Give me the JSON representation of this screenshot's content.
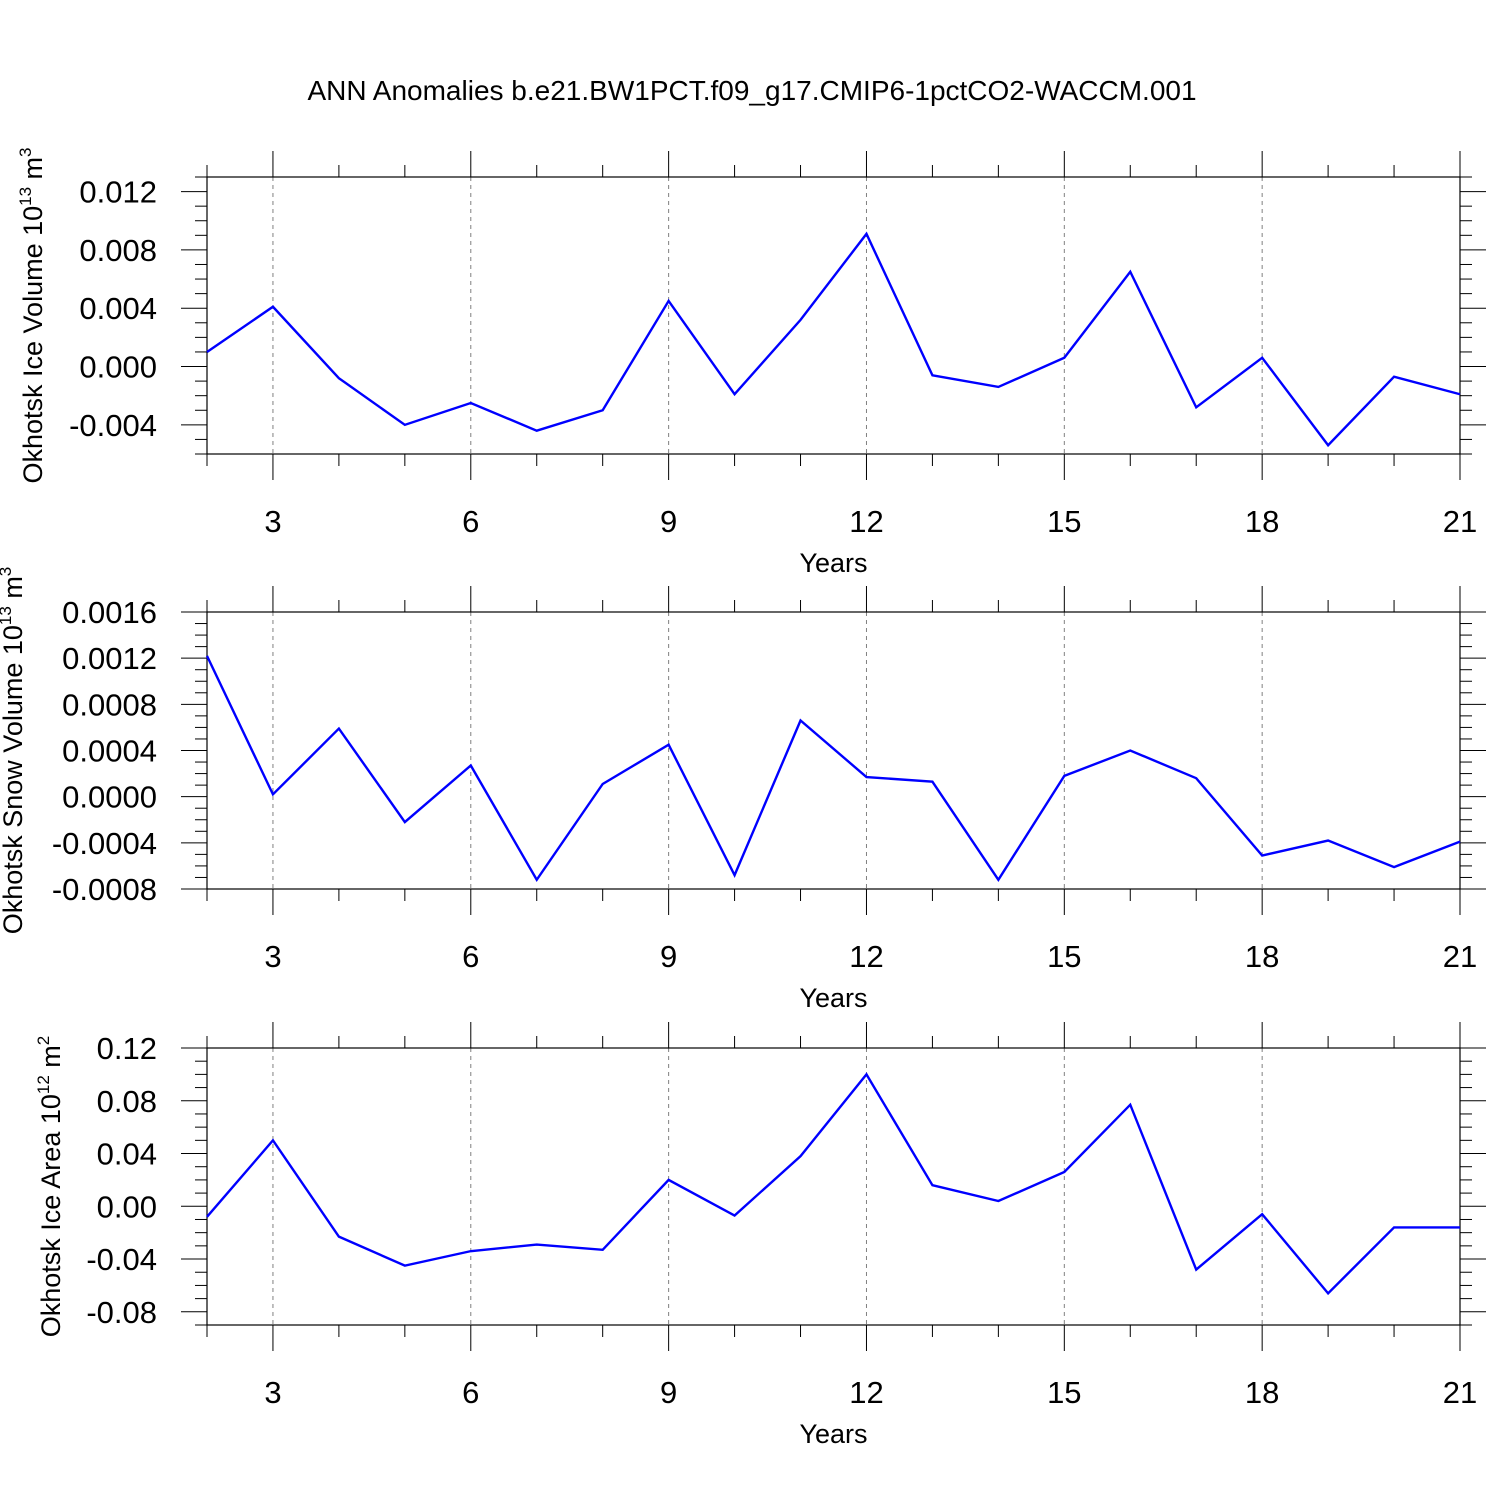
{
  "title": "ANN Anomalies b.e21.BW1PCT.f09_g17.CMIP6-1pctCO2-WACCM.001",
  "colors": {
    "series": "#0000ff",
    "axis": "#000000",
    "grid": "#808080"
  },
  "chart_data": [
    {
      "type": "line",
      "ylabel": "Okhotsk Ice Volume 10",
      "ylabel_exp": "13",
      "ylabel_unit": " m",
      "ylabel_unit_exp": "3",
      "xlabel": "Years",
      "xlim": [
        2,
        21
      ],
      "ylim": [
        -0.006,
        0.013
      ],
      "xticks": [
        3,
        6,
        9,
        12,
        15,
        18,
        21
      ],
      "xtick_labels": [
        "3",
        "6",
        "9",
        "12",
        "15",
        "18",
        "21"
      ],
      "yticks": [
        -0.004,
        0.0,
        0.004,
        0.008,
        0.012
      ],
      "ytick_labels": [
        "-0.004",
        "0.000",
        "0.004",
        "0.008",
        "0.012"
      ],
      "ymajor_step": 0.004,
      "yminor_step": 0.001,
      "grid": "vertical dashed at major x ticks",
      "x": [
        2,
        3,
        4,
        5,
        6,
        7,
        8,
        9,
        10,
        11,
        12,
        13,
        14,
        15,
        16,
        17,
        18,
        19,
        20,
        21
      ],
      "series": [
        {
          "values": [
            0.001,
            0.0041,
            -0.0008,
            -0.004,
            -0.0025,
            -0.0044,
            -0.003,
            0.0045,
            -0.0019,
            0.0032,
            0.0091,
            -0.0006,
            -0.0014,
            0.0006,
            0.0065,
            -0.0028,
            0.0006,
            -0.0054,
            -0.0007,
            -0.0019
          ]
        }
      ]
    },
    {
      "type": "line",
      "ylabel": "Okhotsk Snow Volume 10",
      "ylabel_exp": "13",
      "ylabel_unit": " m",
      "ylabel_unit_exp": "3",
      "xlabel": "Years",
      "xlim": [
        2,
        21
      ],
      "ylim": [
        -0.0008,
        0.0016
      ],
      "xticks": [
        3,
        6,
        9,
        12,
        15,
        18,
        21
      ],
      "xtick_labels": [
        "3",
        "6",
        "9",
        "12",
        "15",
        "18",
        "21"
      ],
      "yticks": [
        -0.0008,
        -0.0004,
        0.0,
        0.0004,
        0.0008,
        0.0012,
        0.0016
      ],
      "ytick_labels": [
        "-0.0008",
        "-0.0004",
        "0.0000",
        "0.0004",
        "0.0008",
        "0.0012",
        "0.0016"
      ],
      "ymajor_step": 0.0004,
      "yminor_step": 0.0001,
      "grid": "vertical dashed at major x ticks",
      "x": [
        2,
        3,
        4,
        5,
        6,
        7,
        8,
        9,
        10,
        11,
        12,
        13,
        14,
        15,
        16,
        17,
        18,
        19,
        20,
        21
      ],
      "series": [
        {
          "values": [
            0.00122,
            2e-05,
            0.00059,
            -0.00022,
            0.00027,
            -0.00072,
            0.00011,
            0.00045,
            -0.00068,
            0.00066,
            0.00017,
            0.00013,
            -0.00072,
            0.00018,
            0.0004,
            0.00016,
            -0.00051,
            -0.00038,
            -0.00061,
            -0.00039
          ]
        }
      ]
    },
    {
      "type": "line",
      "ylabel": "Okhotsk Ice Area 10",
      "ylabel_exp": "12",
      "ylabel_unit": " m",
      "ylabel_unit_exp": "2",
      "xlabel": "Years",
      "xlim": [
        2,
        21
      ],
      "ylim": [
        -0.09,
        0.12
      ],
      "xticks": [
        3,
        6,
        9,
        12,
        15,
        18,
        21
      ],
      "xtick_labels": [
        "3",
        "6",
        "9",
        "12",
        "15",
        "18",
        "21"
      ],
      "yticks": [
        -0.08,
        -0.04,
        0.0,
        0.04,
        0.08,
        0.12
      ],
      "ytick_labels": [
        "-0.08",
        "-0.04",
        "0.00",
        "0.04",
        "0.08",
        "0.12"
      ],
      "ymajor_step": 0.04,
      "yminor_step": 0.01,
      "grid": "vertical dashed at major x ticks",
      "x": [
        2,
        3,
        4,
        5,
        6,
        7,
        8,
        9,
        10,
        11,
        12,
        13,
        14,
        15,
        16,
        17,
        18,
        19,
        20,
        21
      ],
      "series": [
        {
          "values": [
            -0.008,
            0.05,
            -0.023,
            -0.045,
            -0.034,
            -0.029,
            -0.033,
            0.02,
            -0.007,
            0.038,
            0.1,
            0.016,
            0.004,
            0.026,
            0.077,
            -0.048,
            -0.006,
            -0.066,
            -0.016,
            -0.016
          ]
        }
      ]
    }
  ]
}
